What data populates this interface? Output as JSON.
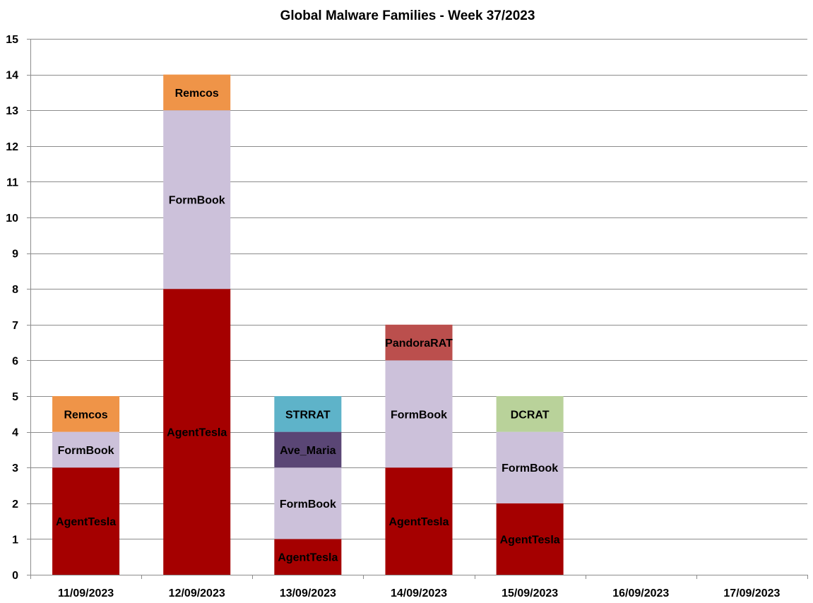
{
  "chart_data": {
    "type": "bar",
    "stacked": true,
    "title": "Global Malware Families - Week 37/2023",
    "xlabel": "",
    "ylabel": "",
    "ylim": [
      0,
      15
    ],
    "y_ticks": [
      0,
      1,
      2,
      3,
      4,
      5,
      6,
      7,
      8,
      9,
      10,
      11,
      12,
      13,
      14,
      15
    ],
    "grid": true,
    "legend": "none",
    "categories": [
      "11/09/2023",
      "12/09/2023",
      "13/09/2023",
      "14/09/2023",
      "15/09/2023",
      "16/09/2023",
      "17/09/2023"
    ],
    "stacks": [
      [
        {
          "family": "AgentTesla",
          "value": 3,
          "color": "#a50000"
        },
        {
          "family": "FormBook",
          "value": 1,
          "color": "#ccc1da"
        },
        {
          "family": "Remcos",
          "value": 1,
          "color": "#ef9448"
        }
      ],
      [
        {
          "family": "AgentTesla",
          "value": 8,
          "color": "#a50000"
        },
        {
          "family": "FormBook",
          "value": 5,
          "color": "#ccc1da"
        },
        {
          "family": "Remcos",
          "value": 1,
          "color": "#ef9448"
        }
      ],
      [
        {
          "family": "AgentTesla",
          "value": 1,
          "color": "#a50000"
        },
        {
          "family": "FormBook",
          "value": 2,
          "color": "#ccc1da"
        },
        {
          "family": "Ave_Maria",
          "value": 1,
          "color": "#5a4675"
        },
        {
          "family": "STRRAT",
          "value": 1,
          "color": "#5eb3c9"
        }
      ],
      [
        {
          "family": "AgentTesla",
          "value": 3,
          "color": "#a50000"
        },
        {
          "family": "FormBook",
          "value": 3,
          "color": "#ccc1da"
        },
        {
          "family": "PandoraRAT",
          "value": 1,
          "color": "#bb4f4d"
        }
      ],
      [
        {
          "family": "AgentTesla",
          "value": 2,
          "color": "#a50000"
        },
        {
          "family": "FormBook",
          "value": 2,
          "color": "#ccc1da"
        },
        {
          "family": "DCRAT",
          "value": 1,
          "color": "#b9d29a"
        }
      ],
      [],
      []
    ]
  }
}
